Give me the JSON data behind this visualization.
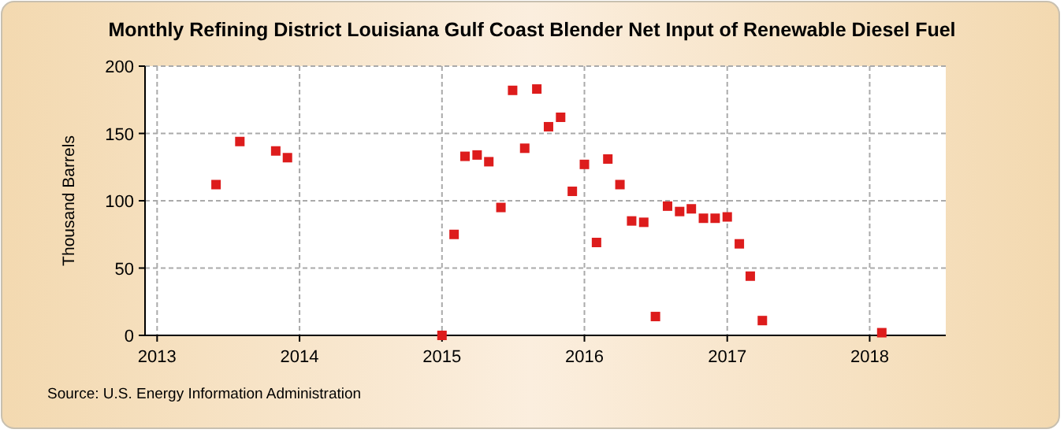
{
  "chart_data": {
    "type": "scatter",
    "title": "Monthly Refining District Louisiana Gulf Coast Blender Net Input of Renewable Diesel Fuel",
    "ylabel": "Thousand Barrels",
    "annotations": [
      "Source: U.S. Energy Information Administration"
    ],
    "x": [
      "2013-06",
      "2013-08",
      "2013-11",
      "2013-12",
      "2015-01",
      "2015-02",
      "2015-03",
      "2015-04",
      "2015-05",
      "2015-06",
      "2015-07",
      "2015-08",
      "2015-09",
      "2015-10",
      "2015-11",
      "2015-12",
      "2016-01",
      "2016-02",
      "2016-03",
      "2016-04",
      "2016-05",
      "2016-06",
      "2016-07",
      "2016-08",
      "2016-09",
      "2016-10",
      "2016-11",
      "2016-12",
      "2017-01",
      "2017-02",
      "2017-03",
      "2017-04",
      "2018-02"
    ],
    "series": [
      {
        "color": "#dd1c1c",
        "values": [
          112,
          144,
          137,
          132,
          0,
          75,
          133,
          134,
          129,
          95,
          182,
          139,
          183,
          155,
          162,
          107,
          127,
          69,
          131,
          112,
          85,
          84,
          14,
          96,
          92,
          94,
          87,
          87,
          88,
          68,
          44,
          11,
          2
        ]
      }
    ],
    "xlim": [
      "2012-12-01",
      "2018-07-15"
    ],
    "xticks": [
      {
        "value": "2013-01",
        "label": "2013"
      },
      {
        "value": "2014-01",
        "label": "2014"
      },
      {
        "value": "2015-01",
        "label": "2015"
      },
      {
        "value": "2016-01",
        "label": "2016"
      },
      {
        "value": "2017-01",
        "label": "2017"
      },
      {
        "value": "2018-01",
        "label": "2018"
      }
    ],
    "ylim": [
      0,
      200
    ],
    "yticks": [
      0,
      50,
      100,
      150,
      200
    ],
    "grid": true,
    "marker": "square"
  }
}
